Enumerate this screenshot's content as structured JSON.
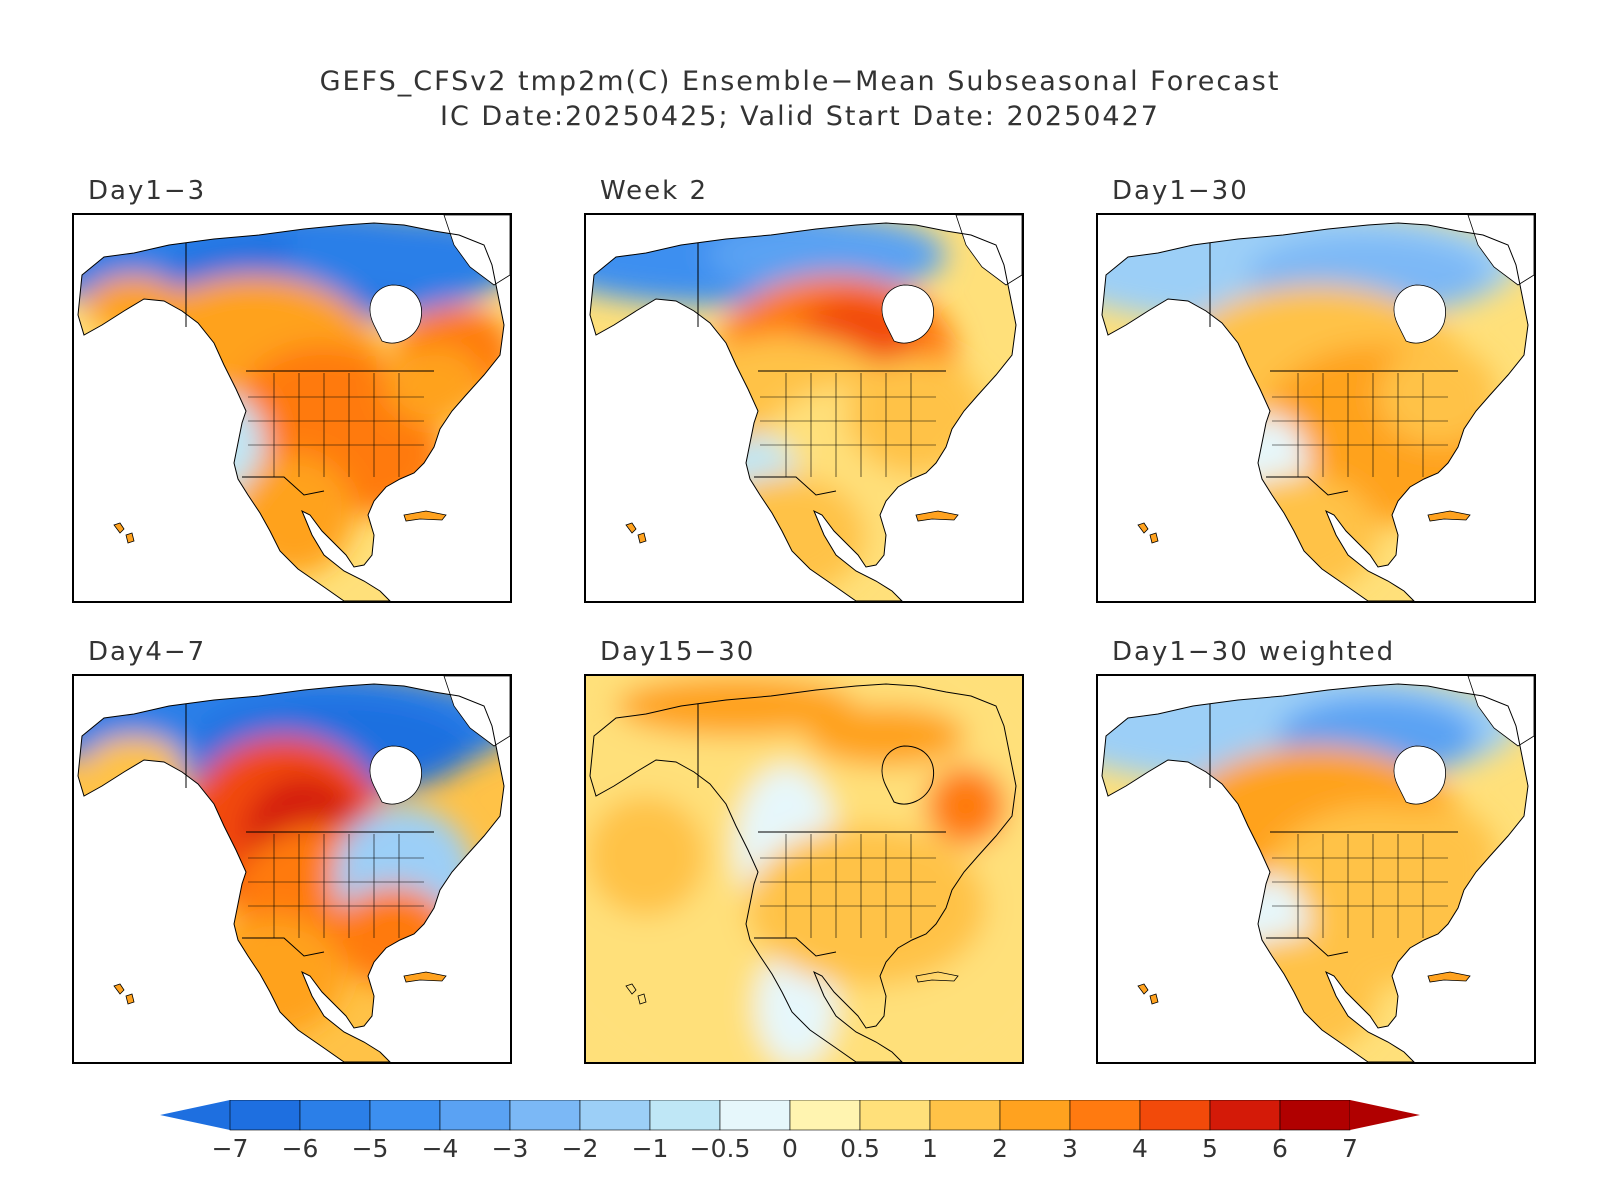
{
  "title": {
    "line1": "GEFS_CFSv2 tmp2m(C) Ensemble−Mean Subseasonal Forecast",
    "line2": "IC Date:20250425; Valid Start Date: 20250427"
  },
  "panels": [
    {
      "label": "Day1−3",
      "pattern": "day1_3"
    },
    {
      "label": "Week 2",
      "pattern": "week2"
    },
    {
      "label": "Day1−30",
      "pattern": "day1_30"
    },
    {
      "label": "Day4−7",
      "pattern": "day4_7"
    },
    {
      "label": "Day15−30",
      "pattern": "day15_30"
    },
    {
      "label": "Day1−30 weighted",
      "pattern": "day1_30w"
    }
  ],
  "colorbar": {
    "labels": [
      "−7",
      "−6",
      "−5",
      "−4",
      "−3",
      "−2",
      "−1",
      "−0.5",
      "0",
      "0.5",
      "1",
      "2",
      "3",
      "4",
      "5",
      "6",
      "7"
    ],
    "colors": [
      "#1e6fe0",
      "#2b7fe8",
      "#3c8ff0",
      "#5aa2f3",
      "#7bb8f6",
      "#9ccff7",
      "#bfe7f6",
      "#e6f7fb",
      "#fff4b0",
      "#ffe07a",
      "#ffc247",
      "#ffa21f",
      "#ff7a10",
      "#f24a0a",
      "#d41a08",
      "#b00000"
    ],
    "left_arrow_color": "#1e6fe0",
    "right_arrow_color": "#b00000"
  }
}
